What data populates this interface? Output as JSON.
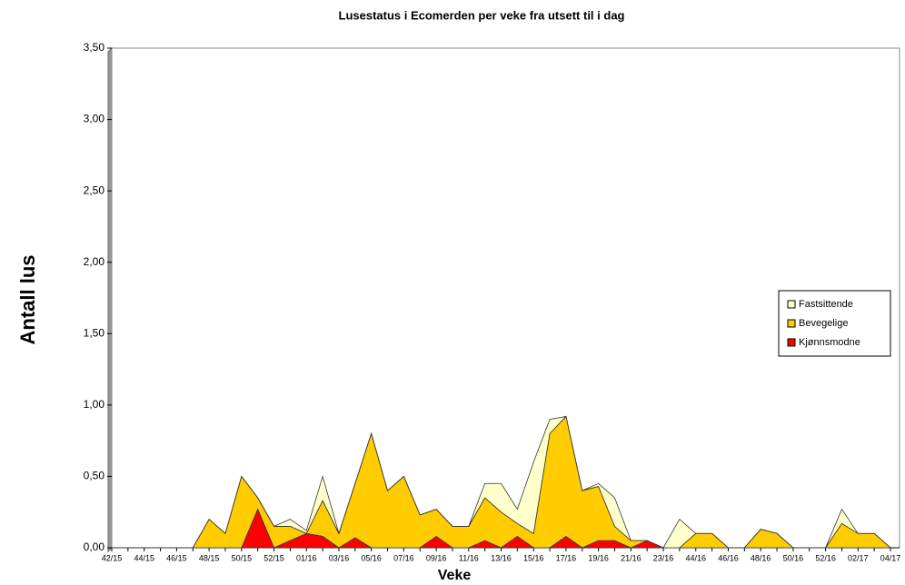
{
  "chart_data": {
    "type": "stacked_area",
    "title": "Lusestatus i Ecomerden per veke fra utsett til i dag",
    "y_label": "Antall lus",
    "x_label": "Veke",
    "categories": [
      "42/15",
      null,
      "44/15",
      null,
      "46/15",
      null,
      "48/15",
      null,
      "50/15",
      null,
      "52/15",
      null,
      "01/16",
      null,
      "03/16",
      null,
      "05/16",
      null,
      "07/16",
      null,
      "09/16",
      null,
      "11/16",
      null,
      "13/16",
      null,
      "15/16",
      null,
      "17/16",
      null,
      "19/16",
      null,
      "21/16",
      null,
      "23/16",
      null,
      "44/16",
      null,
      "46/16",
      null,
      "48/16",
      null,
      "50/16",
      null,
      "52/16",
      null,
      "02/17",
      null,
      "04/17"
    ],
    "series": [
      {
        "name": "Kjønnsmodne",
        "color": "#ff0000",
        "values": [
          0,
          0,
          0,
          0,
          0,
          0,
          0,
          0,
          0,
          0.27,
          0,
          0.05,
          0.1,
          0.08,
          0,
          0.07,
          0,
          0,
          0,
          0,
          0.08,
          0,
          0,
          0.05,
          0,
          0.08,
          0,
          0,
          0.08,
          0,
          0.05,
          0.05,
          0,
          0.05,
          0,
          0,
          0,
          0,
          0,
          0,
          0,
          0,
          0,
          0,
          0,
          0,
          0,
          0,
          0
        ]
      },
      {
        "name": "Bevegelige",
        "color": "#ffcc00",
        "values": [
          0,
          0,
          0,
          0,
          0,
          0,
          0.2,
          0.1,
          0.5,
          0.08,
          0.15,
          0.1,
          0,
          0.25,
          0.1,
          0.38,
          0.8,
          0.4,
          0.5,
          0.23,
          0.19,
          0.15,
          0.15,
          0.3,
          0.25,
          0.09,
          0.1,
          0.8,
          0.84,
          0.4,
          0.38,
          0.1,
          0.05,
          0,
          0,
          0,
          0.1,
          0.1,
          0,
          0,
          0.13,
          0.1,
          0,
          0,
          0,
          0.17,
          0.1,
          0.1,
          0
        ]
      },
      {
        "name": "Fastsittende",
        "color": "#ffffcc",
        "values": [
          0,
          0,
          0,
          0,
          0,
          0,
          0,
          0,
          0,
          0,
          0,
          0.05,
          0.02,
          0.17,
          0,
          0,
          0,
          0,
          0,
          0,
          0,
          0,
          0,
          0.1,
          0.2,
          0.1,
          0.5,
          0.1,
          0,
          0,
          0.02,
          0.2,
          0,
          0,
          0,
          0.2,
          0,
          0,
          0,
          0,
          0,
          0,
          0,
          0,
          0,
          0.1,
          0,
          0,
          0
        ]
      }
    ],
    "ylim": [
      0,
      3.5
    ],
    "yticks": [
      {
        "value": 0,
        "label": "0,00"
      },
      {
        "value": 0.5,
        "label": "0,50"
      },
      {
        "value": 1,
        "label": "1,00"
      },
      {
        "value": 1.5,
        "label": "1,50"
      },
      {
        "value": 2,
        "label": "2,00"
      },
      {
        "value": 2.5,
        "label": "2,50"
      },
      {
        "value": 3,
        "label": "3,00"
      },
      {
        "value": 3.5,
        "label": "3,50"
      }
    ],
    "legend": "right"
  }
}
